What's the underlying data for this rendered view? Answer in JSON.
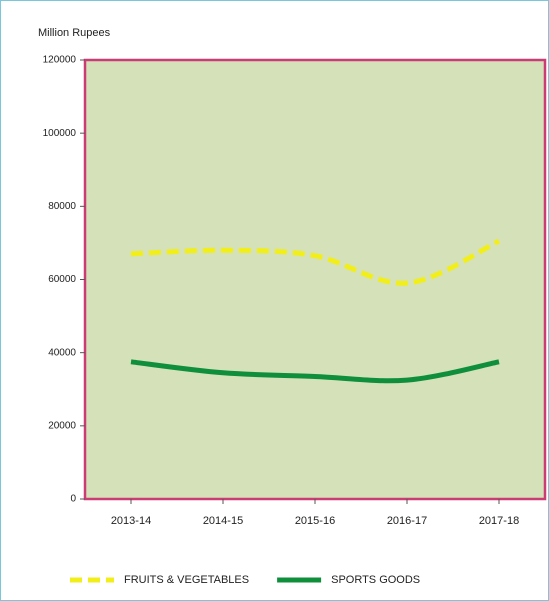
{
  "chart_data": {
    "type": "line",
    "y_axis_label": "Million Rupees",
    "categories": [
      "2013-14",
      "2014-15",
      "2015-16",
      "2016-17",
      "2017-18"
    ],
    "series": [
      {
        "name": "FRUITS & VEGETABLES",
        "color": "#f2ee1a",
        "dashed": true,
        "values": [
          67000,
          68000,
          66500,
          59000,
          70500
        ]
      },
      {
        "name": "SPORTS GOODS",
        "color": "#0f8f3c",
        "dashed": false,
        "values": [
          37500,
          34500,
          33500,
          32500,
          37500
        ]
      }
    ],
    "ylim": [
      0,
      120000
    ],
    "yticks": [
      0,
      20000,
      40000,
      60000,
      80000,
      100000,
      120000
    ],
    "plot_background": "#d5e1b9",
    "plot_border": "#cc3c74"
  }
}
